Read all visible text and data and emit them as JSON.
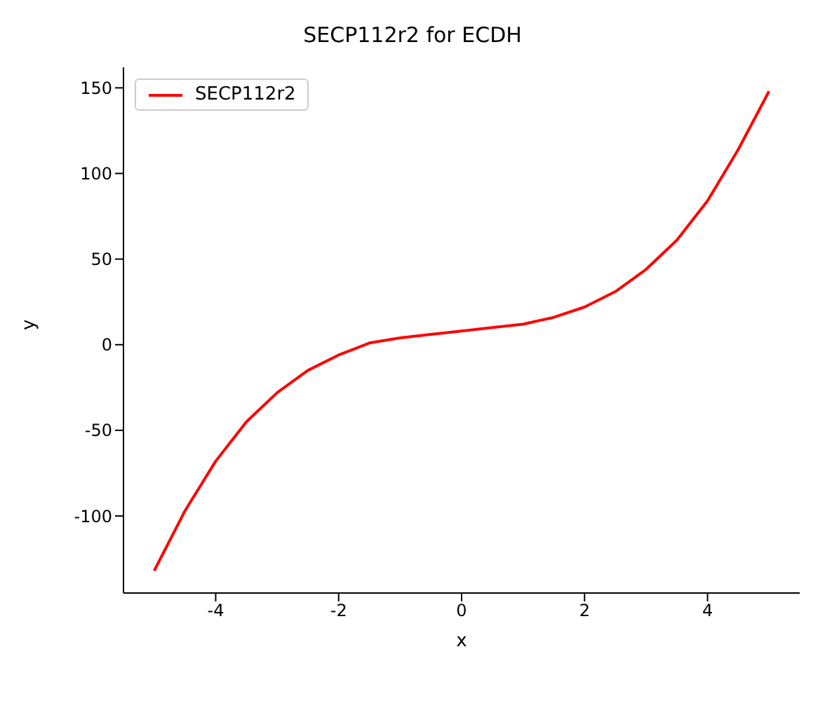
{
  "chart_data": {
    "type": "line",
    "title": "SECP112r2 for ECDH",
    "xlabel": "x",
    "ylabel": "y",
    "x": [
      -5,
      -4.5,
      -4,
      -3.5,
      -3,
      -2.5,
      -2,
      -1.5,
      -1,
      -0.5,
      0,
      0.5,
      1,
      1.5,
      2,
      2.5,
      3,
      3.5,
      4,
      4.5,
      5
    ],
    "series": [
      {
        "name": "SECP112r2",
        "color": "#ff0000",
        "values": [
          -132,
          -97,
          -68,
          -45,
          -28,
          -15,
          -6,
          1,
          4,
          6,
          8,
          10,
          12,
          16,
          22,
          31,
          44,
          61,
          84,
          114,
          148
        ]
      }
    ],
    "xlim": [
      -5.5,
      5.5
    ],
    "ylim": [
      -145,
      162
    ],
    "xticks": [
      -4,
      -2,
      0,
      2,
      4
    ],
    "yticks": [
      -100,
      -50,
      0,
      50,
      100,
      150
    ],
    "legend": "top left",
    "grid": false,
    "marker": "none",
    "line_style": "solid"
  }
}
